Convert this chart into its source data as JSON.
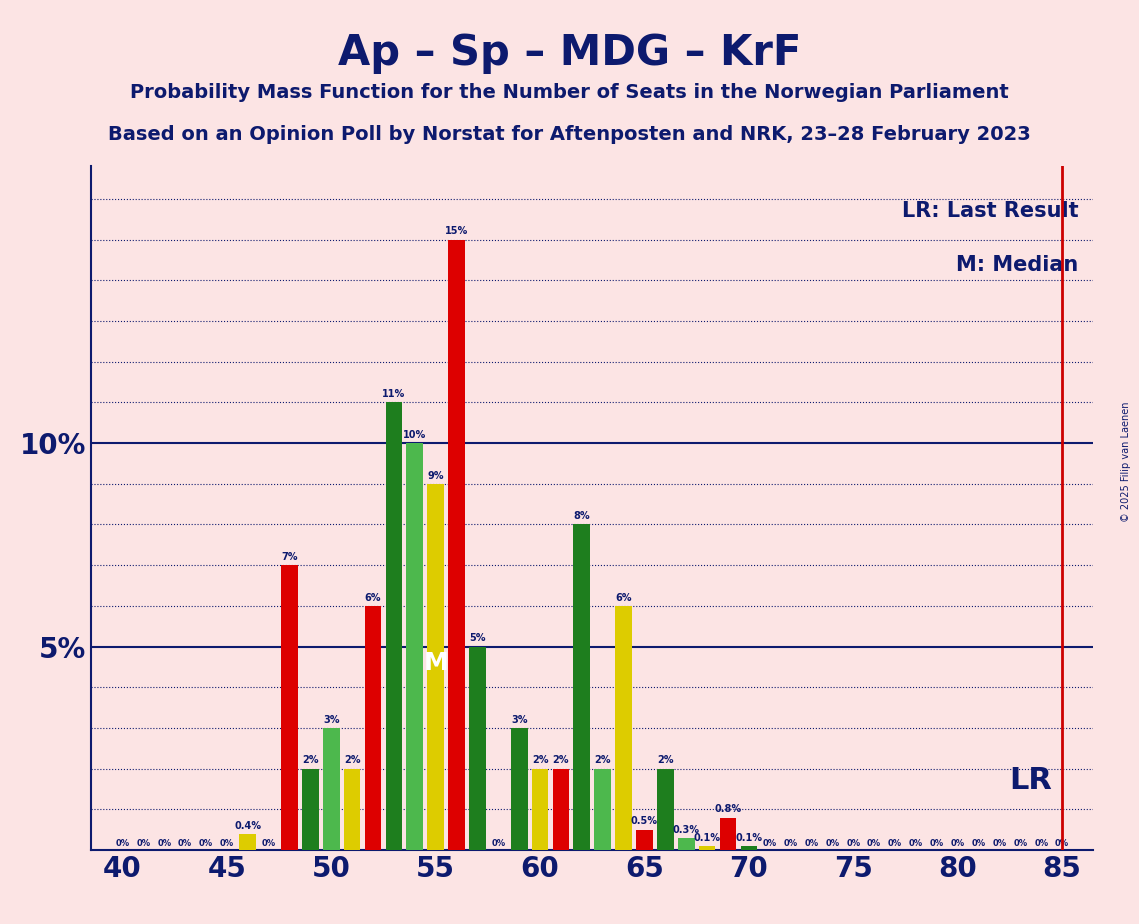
{
  "title": "Ap – Sp – MDG – KrF",
  "subtitle1": "Probability Mass Function for the Number of Seats in the Norwegian Parliament",
  "subtitle2": "Based on an Opinion Poll by Norstat for Aftenposten and NRK, 23–28 February 2023",
  "copyright": "© 2025 Filip van Laenen",
  "background_color": "#fce4e4",
  "bar_colors": {
    "red": "#dd0000",
    "dark_green": "#1e7e1e",
    "light_green": "#4db84d",
    "yellow": "#ddcc00"
  },
  "xlim": [
    38.5,
    86.5
  ],
  "ylim": [
    0,
    0.168
  ],
  "solid_lines": [
    0.05,
    0.1
  ],
  "dotted_lines": [
    0.01,
    0.02,
    0.03,
    0.04,
    0.06,
    0.07,
    0.08,
    0.09,
    0.11,
    0.12,
    0.13,
    0.14,
    0.15,
    0.16
  ],
  "ytick_positions": [
    0.05,
    0.1
  ],
  "ytick_labels": [
    "5%",
    "10%"
  ],
  "xticks": [
    40,
    45,
    50,
    55,
    60,
    65,
    70,
    75,
    80,
    85
  ],
  "lr_line_x": 85,
  "median_seat": 55,
  "legend_lr": "LR: Last Result",
  "legend_m": "M: Median",
  "lr_label": "LR",
  "m_label": "M",
  "bar_data": [
    {
      "seat": 46,
      "color": "yellow",
      "value": 0.004,
      "label": "0.4%"
    },
    {
      "seat": 48,
      "color": "red",
      "value": 0.07,
      "label": "7%"
    },
    {
      "seat": 49,
      "color": "dark_green",
      "value": 0.02,
      "label": "2%"
    },
    {
      "seat": 50,
      "color": "light_green",
      "value": 0.03,
      "label": "3%"
    },
    {
      "seat": 51,
      "color": "yellow",
      "value": 0.02,
      "label": "2%"
    },
    {
      "seat": 52,
      "color": "red",
      "value": 0.06,
      "label": "6%"
    },
    {
      "seat": 53,
      "color": "dark_green",
      "value": 0.11,
      "label": "11%"
    },
    {
      "seat": 54,
      "color": "light_green",
      "value": 0.1,
      "label": "10%"
    },
    {
      "seat": 55,
      "color": "yellow",
      "value": 0.09,
      "label": "9%"
    },
    {
      "seat": 56,
      "color": "red",
      "value": 0.15,
      "label": "15%"
    },
    {
      "seat": 57,
      "color": "dark_green",
      "value": 0.05,
      "label": "5%"
    },
    {
      "seat": 59,
      "color": "dark_green",
      "value": 0.03,
      "label": "3%"
    },
    {
      "seat": 60,
      "color": "yellow",
      "value": 0.02,
      "label": "2%"
    },
    {
      "seat": 61,
      "color": "red",
      "value": 0.02,
      "label": "2%"
    },
    {
      "seat": 62,
      "color": "dark_green",
      "value": 0.08,
      "label": "8%"
    },
    {
      "seat": 63,
      "color": "light_green",
      "value": 0.02,
      "label": "2%"
    },
    {
      "seat": 64,
      "color": "yellow",
      "value": 0.06,
      "label": "6%"
    },
    {
      "seat": 65,
      "color": "red",
      "value": 0.005,
      "label": "0.5%"
    },
    {
      "seat": 66,
      "color": "dark_green",
      "value": 0.02,
      "label": "2%"
    },
    {
      "seat": 67,
      "color": "light_green",
      "value": 0.003,
      "label": "0.3%"
    },
    {
      "seat": 68,
      "color": "yellow",
      "value": 0.001,
      "label": "0.1%"
    },
    {
      "seat": 69,
      "color": "red",
      "value": 0.008,
      "label": "0.8%"
    },
    {
      "seat": 70,
      "color": "dark_green",
      "value": 0.001,
      "label": "0.1%"
    }
  ],
  "zero_label_seats": [
    40,
    41,
    42,
    43,
    44,
    45,
    47,
    58,
    71,
    72,
    73,
    74,
    75,
    76,
    77,
    78,
    79,
    80,
    81,
    82,
    83,
    84,
    85
  ],
  "title_color": "#0d1a6e",
  "axis_color": "#0d1a6e",
  "solid_line_color": "#0d1a6e",
  "dotted_line_color": "#0d1a6e",
  "lr_color": "#cc0000",
  "annotation_color": "#0d1a6e",
  "title_fontsize": 30,
  "subtitle_fontsize": 14,
  "tick_fontsize": 20,
  "bar_label_fontsize": 7,
  "legend_fontsize": 15,
  "lr_label_fontsize": 22,
  "m_label_fontsize": 18,
  "zero_label_fontsize": 6
}
